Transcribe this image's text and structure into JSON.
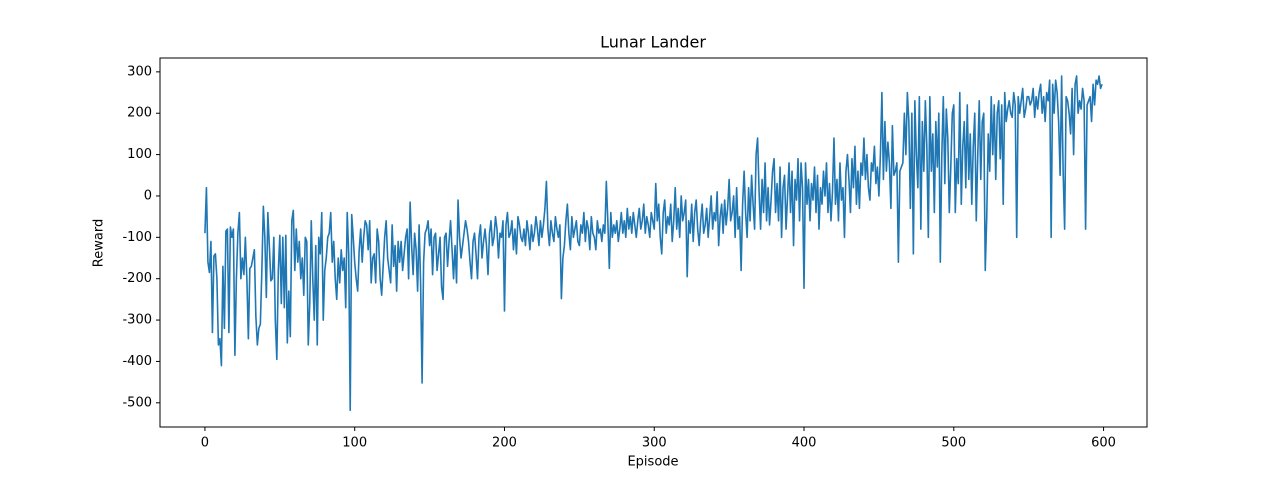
{
  "chart_data": {
    "type": "line",
    "title": "Lunar Lander",
    "x_label": "Episode",
    "y_label": "Reward",
    "xlim": [
      -30,
      629
    ],
    "xticks": [
      0,
      100,
      200,
      300,
      400,
      500,
      600
    ],
    "ylim": [
      -558.5,
      333.5
    ],
    "yticks": [
      -500,
      -400,
      -300,
      -200,
      -100,
      0,
      100,
      200,
      300
    ],
    "grid": false,
    "color": "#1f77b4",
    "values": [
      -90,
      20,
      -160,
      -185,
      -110,
      -330,
      -145,
      -140,
      -200,
      -360,
      -345,
      -410,
      -170,
      -320,
      -85,
      -80,
      -330,
      -75,
      -100,
      -80,
      -385,
      -200,
      -90,
      -40,
      -200,
      -150,
      -190,
      -100,
      -200,
      -345,
      -175,
      -170,
      -150,
      -130,
      -290,
      -360,
      -320,
      -310,
      -180,
      -25,
      -100,
      -245,
      -40,
      -120,
      -205,
      -200,
      -100,
      -300,
      -395,
      -180,
      -95,
      -260,
      -100,
      -270,
      -95,
      -355,
      -230,
      -340,
      -60,
      -35,
      -180,
      -80,
      -160,
      -110,
      -200,
      -150,
      -240,
      -100,
      -110,
      -360,
      -260,
      -60,
      -200,
      -300,
      -120,
      -360,
      -100,
      -140,
      -40,
      -300,
      -180,
      -150,
      -100,
      -90,
      -40,
      -160,
      -110,
      -200,
      -250,
      -150,
      -210,
      -130,
      -180,
      -150,
      -270,
      -40,
      -140,
      -518,
      -45,
      -100,
      -160,
      -200,
      -230,
      -130,
      -80,
      -160,
      -100,
      -60,
      -70,
      -130,
      -60,
      -210,
      -150,
      -140,
      -210,
      -80,
      -110,
      -200,
      -240,
      -170,
      -100,
      -60,
      -150,
      -180,
      -210,
      -70,
      -170,
      -120,
      -230,
      -110,
      -160,
      -110,
      -180,
      -140,
      -100,
      -80,
      -200,
      -15,
      -120,
      -190,
      -90,
      -130,
      -230,
      -70,
      -210,
      -452,
      -160,
      -90,
      -80,
      -60,
      -120,
      -80,
      -190,
      -100,
      -90,
      -180,
      -140,
      -100,
      -220,
      -250,
      -100,
      -90,
      -170,
      -110,
      -60,
      -130,
      -200,
      -120,
      -210,
      -10,
      -100,
      -150,
      -120,
      -90,
      -60,
      -80,
      -110,
      -160,
      -200,
      -110,
      -90,
      -140,
      -200,
      -100,
      -70,
      -150,
      -110,
      -80,
      -120,
      -190,
      -90,
      -60,
      -120,
      -100,
      -50,
      -80,
      -150,
      -90,
      -100,
      -60,
      -278,
      -70,
      -40,
      -100,
      -90,
      -60,
      -130,
      -80,
      -140,
      -50,
      -70,
      -100,
      -110,
      -80,
      -120,
      -60,
      -90,
      -130,
      -70,
      -110,
      -90,
      -50,
      -80,
      -120,
      -60,
      -100,
      -70,
      -30,
      35,
      -80,
      -120,
      -60,
      -90,
      -110,
      -50,
      -80,
      -100,
      -70,
      -248,
      -150,
      -120,
      -60,
      -20,
      -90,
      -130,
      -50,
      -100,
      -80,
      -60,
      -110,
      -120,
      -70,
      -90,
      -40,
      -110,
      -60,
      -80,
      -130,
      -50,
      -90,
      -100,
      -130,
      -60,
      -90,
      -80,
      -110,
      -70,
      -90,
      35,
      -60,
      -175,
      -40,
      -100,
      -70,
      -90,
      -60,
      -110,
      -80,
      -40,
      -90,
      -60,
      -100,
      -30,
      -80,
      -50,
      -90,
      -40,
      -70,
      -100,
      -60,
      -30,
      -80,
      -60,
      -20,
      -90,
      -50,
      -70,
      -100,
      -40,
      -60,
      -80,
      30,
      -60,
      -20,
      -100,
      -140,
      -40,
      -10,
      -90,
      -50,
      -70,
      -20,
      -110,
      -60,
      20,
      -80,
      -30,
      -100,
      0,
      -60,
      -40,
      -10,
      -195,
      -60,
      -90,
      -20,
      -110,
      -40,
      -10,
      -80,
      -120,
      -60,
      -20,
      -90,
      -70,
      -30,
      -100,
      -50,
      0,
      -80,
      -40,
      -60,
      10,
      -120,
      -50,
      -20,
      -90,
      -10,
      -70,
      -30,
      40,
      -60,
      -40,
      0,
      -100,
      20,
      -80,
      -50,
      -180,
      -20,
      60,
      -40,
      -100,
      20,
      -60,
      50,
      -20,
      -80,
      100,
      140,
      10,
      -80,
      40,
      -40,
      80,
      -60,
      20,
      -70,
      -10,
      60,
      90,
      -40,
      30,
      -60,
      70,
      -100,
      20,
      50,
      -80,
      0,
      80,
      -40,
      60,
      -120,
      40,
      -10,
      90,
      -60,
      80,
      20,
      -223,
      80,
      -20,
      40,
      -60,
      30,
      -10,
      70,
      -40,
      50,
      -80,
      20,
      -20,
      60,
      0,
      80,
      -40,
      30,
      -60,
      10,
      140,
      -20,
      40,
      -60,
      80,
      -10,
      20,
      -100,
      60,
      100,
      40,
      -40,
      90,
      20,
      120,
      -20,
      60,
      -30,
      80,
      50,
      140,
      40,
      100,
      20,
      -10,
      80,
      60,
      120,
      30,
      70,
      0,
      100,
      250,
      40,
      180,
      60,
      130,
      80,
      -30,
      170,
      50,
      60,
      80,
      -160,
      60,
      70,
      80,
      200,
      100,
      250,
      180,
      -30,
      200,
      -140,
      230,
      100,
      20,
      240,
      -80,
      180,
      60,
      230,
      120,
      -100,
      240,
      60,
      150,
      -40,
      180,
      70,
      200,
      -160,
      100,
      240,
      30,
      210,
      140,
      -40,
      70,
      200,
      220,
      -40,
      90,
      30,
      250,
      -20,
      120,
      180,
      20,
      220,
      40,
      150,
      -20,
      120,
      200,
      -60,
      100,
      230,
      40,
      180,
      200,
      -180,
      -50,
      150,
      60,
      240,
      100,
      220,
      40,
      200,
      230,
      90,
      220,
      -20,
      250,
      180,
      210,
      230,
      200,
      190,
      250,
      220,
      -100,
      240,
      200,
      230,
      260,
      190,
      210,
      240,
      240,
      220,
      230,
      260,
      190,
      240,
      210,
      250,
      270,
      200,
      240,
      180,
      250,
      230,
      280,
      -100,
      270,
      200,
      280,
      250,
      180,
      50,
      290,
      60,
      -80,
      240,
      230,
      200,
      150,
      260,
      100,
      270,
      290,
      200,
      230,
      210,
      260,
      230,
      -80,
      220,
      230,
      240,
      180,
      270,
      220,
      280,
      270,
      290,
      260,
      270
    ]
  }
}
